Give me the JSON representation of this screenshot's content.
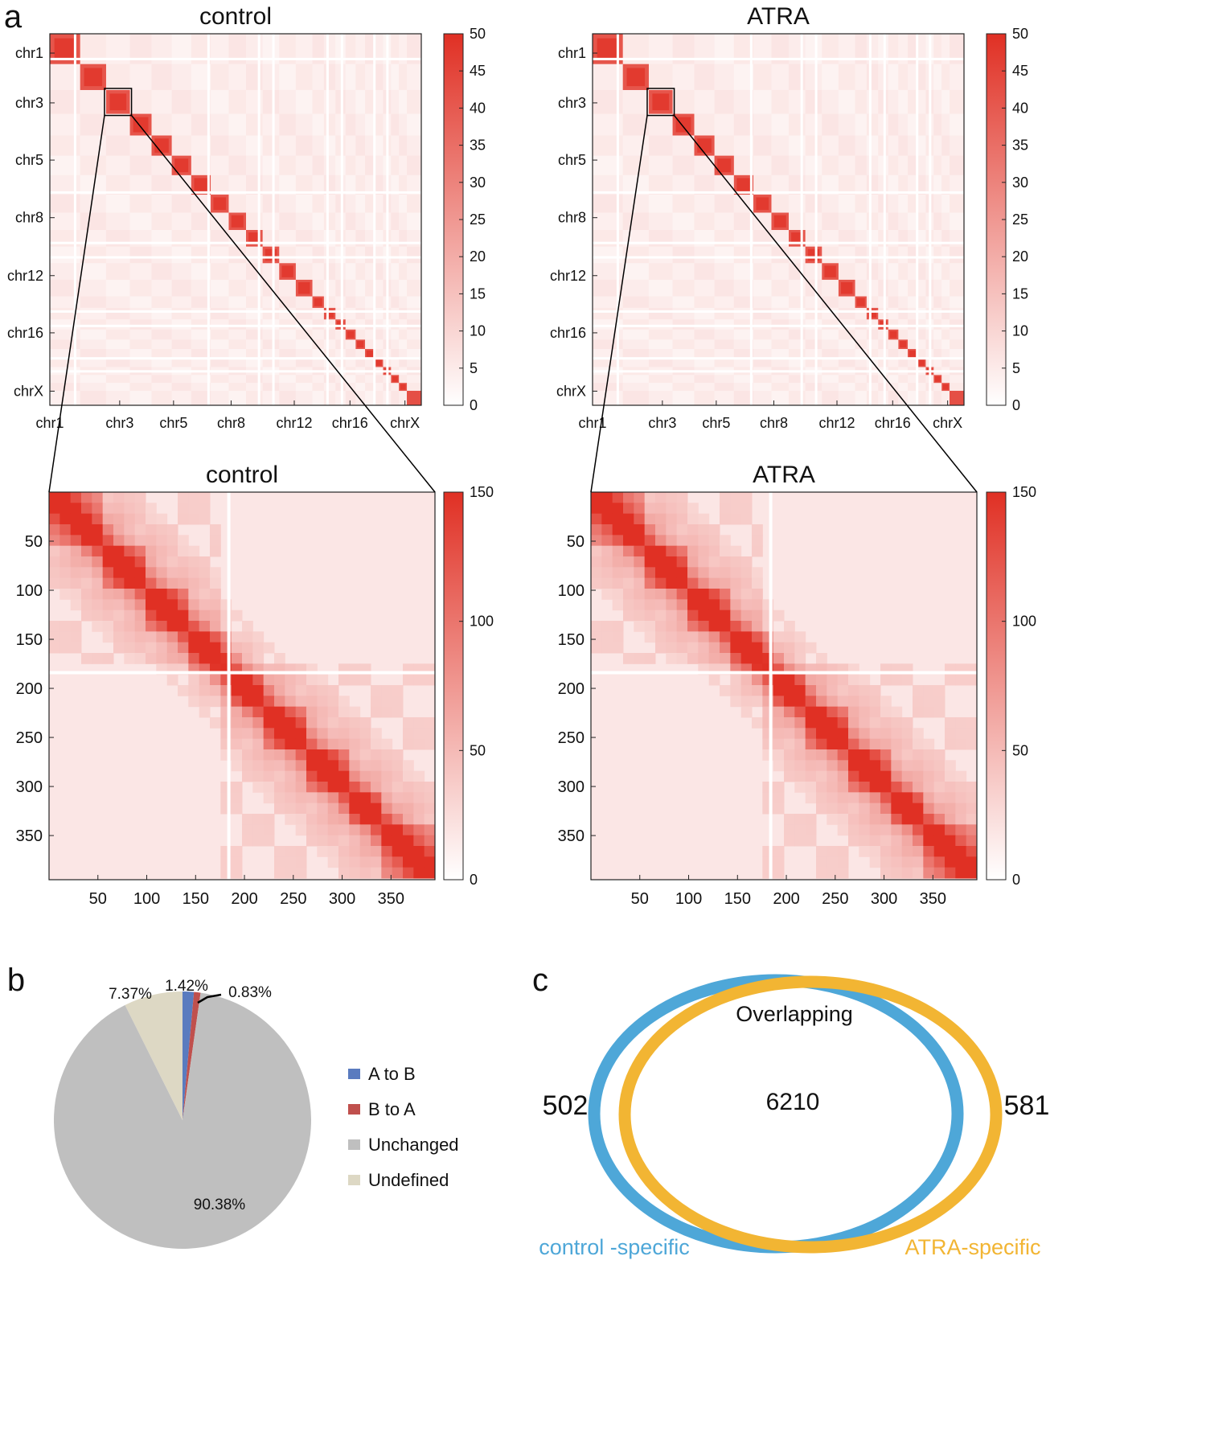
{
  "panel_labels": {
    "a": "a",
    "b": "b",
    "c": "c"
  },
  "colors": {
    "heat": "#e03024",
    "axis": "#222222",
    "pie_a_to_b": "#5a7bbf",
    "pie_b_to_a": "#c0504d",
    "pie_unchanged": "#bfbfbf",
    "pie_undefined": "#ddd8c4",
    "venn_control": "#4ea7d8",
    "venn_atra": "#f2b533"
  },
  "chart_data": [
    {
      "type": "heatmap",
      "title": "control",
      "y_tick_labels": [
        "chr1",
        "chr3",
        "chr5",
        "chr8",
        "chr12",
        "chr16",
        "chrX"
      ],
      "x_tick_labels": [
        "chr1",
        "chr3",
        "chr5",
        "chr8",
        "chr12",
        "chr16",
        "chrX"
      ],
      "colorbar_ticks": [
        "50",
        "45",
        "40",
        "35",
        "30",
        "25",
        "20",
        "15",
        "10",
        "5",
        "0"
      ],
      "colorbar_range": [
        0,
        50
      ]
    },
    {
      "type": "heatmap",
      "title": "ATRA",
      "y_tick_labels": [
        "chr1",
        "chr3",
        "chr5",
        "chr8",
        "chr12",
        "chr16",
        "chrX"
      ],
      "x_tick_labels": [
        "chr1",
        "chr3",
        "chr5",
        "chr8",
        "chr12",
        "chr16",
        "chrX"
      ],
      "colorbar_ticks": [
        "50",
        "45",
        "40",
        "35",
        "30",
        "25",
        "20",
        "15",
        "10",
        "5",
        "0"
      ],
      "colorbar_range": [
        0,
        50
      ]
    },
    {
      "type": "heatmap",
      "title": "control",
      "y_tick_labels": [
        "50",
        "100",
        "150",
        "200",
        "250",
        "300",
        "350"
      ],
      "x_tick_labels": [
        "50",
        "100",
        "150",
        "200",
        "250",
        "300",
        "350"
      ],
      "colorbar_ticks": [
        "150",
        "100",
        "50",
        "0"
      ],
      "colorbar_range": [
        0,
        150
      ]
    },
    {
      "type": "heatmap",
      "title": "ATRA",
      "y_tick_labels": [
        "50",
        "100",
        "150",
        "200",
        "250",
        "300",
        "350"
      ],
      "x_tick_labels": [
        "50",
        "100",
        "150",
        "200",
        "250",
        "300",
        "350"
      ],
      "colorbar_ticks": [
        "150",
        "100",
        "50",
        "0"
      ],
      "colorbar_range": [
        0,
        150
      ]
    },
    {
      "type": "pie",
      "labels": [
        "A to B",
        "B to A",
        "Unchanged",
        "Undefined"
      ],
      "values": [
        1.42,
        0.83,
        90.38,
        7.37
      ],
      "value_labels": [
        "1.42%",
        "0.83%",
        "90.38%",
        "7.37%"
      ],
      "legend_placement": "right"
    },
    {
      "type": "venn",
      "sets": [
        "control -specific",
        "ATRA-specific"
      ],
      "overlap_title": "Overlapping",
      "values": {
        "control_only": 502,
        "overlap": 6210,
        "atra_only": 581
      },
      "value_labels": {
        "control_only": "502",
        "overlap": "6210",
        "atra_only": "581"
      }
    }
  ]
}
